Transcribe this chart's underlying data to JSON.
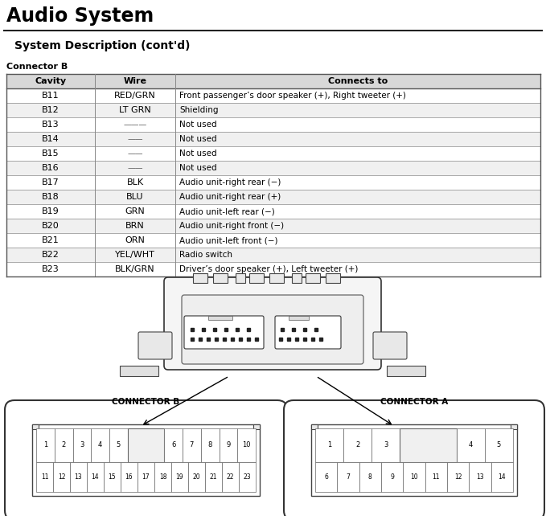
{
  "title": "Audio System",
  "subtitle": "System Description (cont'd)",
  "connector_label": "Connector B",
  "table_headers": [
    "Cavity",
    "Wire",
    "Connects to"
  ],
  "table_rows": [
    [
      "B11",
      "RED/GRN",
      "Front passenger’s door speaker (+), Right tweeter (+)"
    ],
    [
      "B12",
      "LT GRN",
      "Shielding"
    ],
    [
      "B13",
      "———",
      "Not used"
    ],
    [
      "B14",
      "——",
      "Not used"
    ],
    [
      "B15",
      "——",
      "Not used"
    ],
    [
      "B16",
      "——",
      "Not used"
    ],
    [
      "B17",
      "BLK",
      "Audio unit-right rear (−)"
    ],
    [
      "B18",
      "BLU",
      "Audio unit-right rear (+)"
    ],
    [
      "B19",
      "GRN",
      "Audio unit-left rear (−)"
    ],
    [
      "B20",
      "BRN",
      "Audio unit-right front (−)"
    ],
    [
      "B21",
      "ORN",
      "Audio unit-left front (−)"
    ],
    [
      "B22",
      "YEL/WHT",
      "Radio switch"
    ],
    [
      "B23",
      "BLK/GRN",
      "Driver’s door speaker (+), Left tweeter (+)"
    ]
  ],
  "conn_b_label": "CONNECTOR B",
  "conn_a_label": "CONNECTOR A",
  "bg_color": "#ffffff",
  "text_color": "#000000",
  "header_row_color": "#d8d8d8",
  "alt_row_color": "#f0f0f0",
  "table_line_color": "#888888"
}
